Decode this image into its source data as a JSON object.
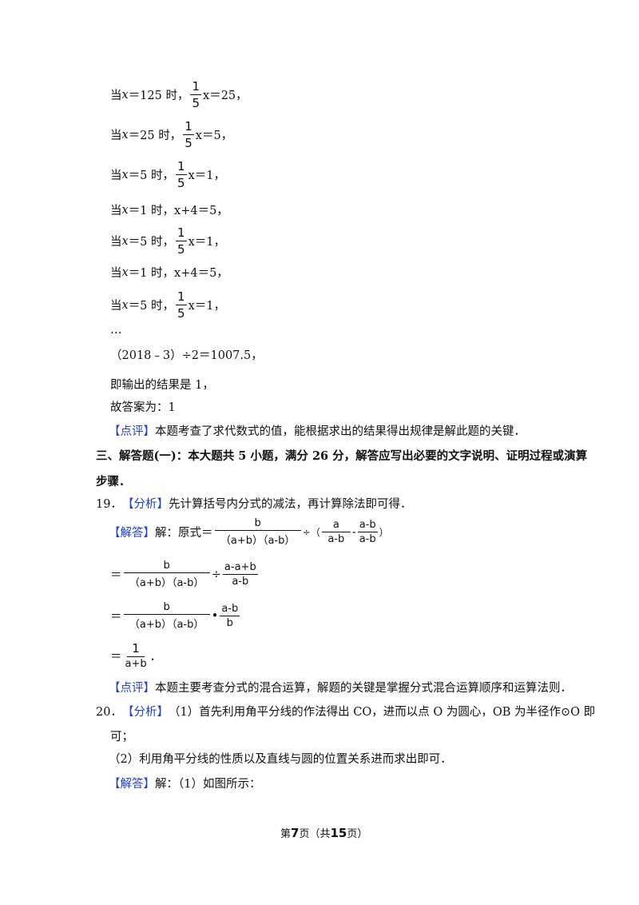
{
  "steps": [
    {
      "pre": "当",
      "x": "x",
      "mid": "＝125 时，",
      "expr": "x＝25，"
    },
    {
      "pre": "当",
      "x": "x",
      "mid": "＝25 时，",
      "expr": "x＝5，"
    },
    {
      "pre": "当",
      "x": "x",
      "mid": "＝5 时，",
      "expr": "x＝1，"
    },
    {
      "pre": "当",
      "x": "x",
      "mid": "＝1 时，",
      "plain": "x+4＝5，"
    },
    {
      "pre": "当",
      "x": "x",
      "mid": "＝5 时，",
      "expr": "x＝1，"
    },
    {
      "pre": "当",
      "x": "x",
      "mid": "＝1 时，",
      "plain": "x+4＝5，"
    },
    {
      "pre": "当",
      "x": "x",
      "mid": "＝5 时，",
      "expr": "x＝1，"
    }
  ],
  "frac_one_fifth": {
    "n": "1",
    "d": "5"
  },
  "ellipsis": "…",
  "calc": "（2018﹣3）÷2＝1007.5，",
  "output_line": "即输出的结果是 1，",
  "answer_line": "故答案为：1",
  "review1": {
    "tag": "【点评】",
    "text": "本题考查了求代数式的值，能根据求出的结果得出规律是解此题的关键．"
  },
  "section_heading": {
    "line1": "三、解答题(一)：本大题共 5 小题，满分 26 分，解答应写出必要的文字说明、证明过程或演算",
    "line2": "步骤．"
  },
  "q19": {
    "num": "19．",
    "analysis_tag": "【分析】",
    "analysis": "先计算括号内分式的减法，再计算除法即可得．",
    "solution_tag": "【解答】",
    "solution_pre": "解：原式＝",
    "f_main": {
      "n": "b",
      "d": "（a+b）（a-b）"
    },
    "div": "÷（",
    "f_a": {
      "n": "a",
      "d": "a-b"
    },
    "minus": "-",
    "f_amb": {
      "n": "a-b",
      "d": "a-b"
    },
    "close": "）",
    "eq": "＝",
    "f_sum": {
      "n": "a-a+b",
      "d": "a-b"
    },
    "div2": "÷",
    "dot": "•",
    "f_amb_b": {
      "n": "a-b",
      "d": "b"
    },
    "f_result": {
      "n": "1",
      "d": "a+b"
    },
    "period": "．",
    "review_tag": "【点评】",
    "review": "本题主要考查分式的混合运算，解题的关键是掌握分式混合运算顺序和运算法则．"
  },
  "q20": {
    "num": "20．",
    "analysis_tag": "【分析】",
    "analysis_l1": "（1）首先利用角平分线的作法得出 CO，进而以点 O 为圆心，OB 为半径作⊙O 即",
    "analysis_l2": "可；",
    "analysis_l3": "（2）利用角平分线的性质以及直线与圆的位置关系进而求出即可．",
    "solution_tag": "【解答】",
    "solution": "解：（1）如图所示："
  },
  "footer": {
    "pre": "第",
    "page": "7",
    "mid": "页（共",
    "total": "15",
    "post": "页）"
  }
}
